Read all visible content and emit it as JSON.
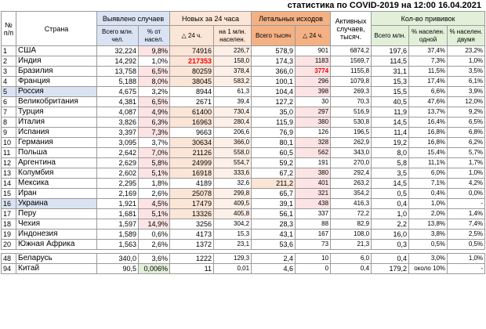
{
  "title": "статистика по COVID-2019 на 12:00 16.04.2021",
  "headers": {
    "num": "№ п/п",
    "country": "Страна",
    "cases": "Выявлено случаев",
    "cases_total": "Всего млн. чел.",
    "cases_pct": "% от насел.",
    "new24": "Новых за 24 часа",
    "new24_delta": "△ 24 ч.",
    "new24_per_mln": "на 1 млн. населен.",
    "deaths": "Летальных исходов",
    "deaths_total": "Всего тысяч",
    "deaths_delta": "△ 24 ч.",
    "active": "Активных случаев, тысяч.",
    "vaccines": "Кол-во прививок",
    "vac_total": "Всего млн.",
    "vac_one": "% населен. одной",
    "vac_two": "% населен. двумя"
  },
  "colors": {
    "header_blue": "#dae3f3",
    "header_orange": "#fbe5d6",
    "header_red": "#f4b183",
    "header_green": "#e2f0d9",
    "highlight_row": "#dae3f3"
  },
  "rows": [
    {
      "n": "1",
      "country": "США",
      "cases": "32,224",
      "pct": "9,8%",
      "new": "74916",
      "per_mln": "226,7",
      "deaths": "578,9",
      "d24": "901",
      "active": "6874,2",
      "vac": "197,6",
      "one": "37,4%",
      "two": "23,2%"
    },
    {
      "n": "2",
      "country": "Индия",
      "cases": "14,292",
      "pct": "1,0%",
      "new": "217353",
      "per_mln": "158,0",
      "deaths": "174,3",
      "d24": "1183",
      "active": "1569,7",
      "vac": "114,5",
      "one": "7,3%",
      "two": "1,0%"
    },
    {
      "n": "3",
      "country": "Бразилия",
      "cases": "13,758",
      "pct": "6,5%",
      "new": "80259",
      "per_mln": "378,4",
      "deaths": "366,0",
      "d24": "3774",
      "active": "1155,8",
      "vac": "31,1",
      "one": "11,5%",
      "two": "3,5%"
    },
    {
      "n": "4",
      "country": "Франция",
      "cases": "5,188",
      "pct": "8,0%",
      "new": "38045",
      "per_mln": "583,2",
      "deaths": "100,1",
      "d24": "296",
      "active": "1079,8",
      "vac": "15,3",
      "one": "17,4%",
      "two": "6,1%"
    },
    {
      "n": "5",
      "country": "Россия",
      "cases": "4,675",
      "pct": "3,2%",
      "new": "8944",
      "per_mln": "61,3",
      "deaths": "104,4",
      "d24": "398",
      "active": "269,3",
      "vac": "15,5",
      "one": "6,6%",
      "two": "3,9%"
    },
    {
      "n": "6",
      "country": "Великобритания",
      "cases": "4,381",
      "pct": "6,5%",
      "new": "2671",
      "per_mln": "39,4",
      "deaths": "127,2",
      "d24": "30",
      "active": "70,3",
      "vac": "40,5",
      "one": "47,6%",
      "two": "12,0%"
    },
    {
      "n": "7",
      "country": "Турция",
      "cases": "4,087",
      "pct": "4,9%",
      "new": "61400",
      "per_mln": "730,4",
      "deaths": "35,0",
      "d24": "297",
      "active": "516,9",
      "vac": "11,9",
      "one": "13,7%",
      "two": "9,2%"
    },
    {
      "n": "8",
      "country": "Италия",
      "cases": "3,826",
      "pct": "6,3%",
      "new": "16963",
      "per_mln": "280,4",
      "deaths": "115,9",
      "d24": "380",
      "active": "530,8",
      "vac": "14,5",
      "one": "16,4%",
      "two": "6,5%"
    },
    {
      "n": "9",
      "country": "Испания",
      "cases": "3,397",
      "pct": "7,3%",
      "new": "9663",
      "per_mln": "206,6",
      "deaths": "76,9",
      "d24": "126",
      "active": "196,5",
      "vac": "11,4",
      "one": "16,8%",
      "two": "6,8%"
    },
    {
      "n": "10",
      "country": "Германия",
      "cases": "3,095",
      "pct": "3,7%",
      "new": "30634",
      "per_mln": "366,0",
      "deaths": "80,1",
      "d24": "328",
      "active": "262,9",
      "vac": "19,2",
      "one": "16,8%",
      "two": "6,2%"
    },
    {
      "n": "11",
      "country": "Польша",
      "cases": "2,642",
      "pct": "7,0%",
      "new": "21126",
      "per_mln": "558,0",
      "deaths": "60,5",
      "d24": "562",
      "active": "343,0",
      "vac": "8,0",
      "one": "15,4%",
      "two": "5,7%"
    },
    {
      "n": "12",
      "country": "Аргентина",
      "cases": "2,629",
      "pct": "5,8%",
      "new": "24999",
      "per_mln": "554,7",
      "deaths": "59,2",
      "d24": "191",
      "active": "270,0",
      "vac": "5,8",
      "one": "11,1%",
      "two": "1,7%"
    },
    {
      "n": "13",
      "country": "Колумбия",
      "cases": "2,602",
      "pct": "5,1%",
      "new": "16918",
      "per_mln": "333,6",
      "deaths": "67,2",
      "d24": "380",
      "active": "292,4",
      "vac": "3,5",
      "one": "6,0%",
      "two": "1,0%"
    },
    {
      "n": "14",
      "country": "Мексика",
      "cases": "2,295",
      "pct": "1,8%",
      "new": "4189",
      "per_mln": "32,6",
      "deaths": "211,2",
      "d24": "401",
      "active": "263,2",
      "vac": "14,5",
      "one": "7,1%",
      "two": "4,2%"
    },
    {
      "n": "15",
      "country": "Иран",
      "cases": "2,169",
      "pct": "2,6%",
      "new": "25078",
      "per_mln": "299,8",
      "deaths": "65,7",
      "d24": "321",
      "active": "354,2",
      "vac": "0,5",
      "one": "0,4%",
      "two": "0,0%"
    },
    {
      "n": "16",
      "country": "Украина",
      "cases": "1,921",
      "pct": "4,5%",
      "new": "17479",
      "per_mln": "409,5",
      "deaths": "39,1",
      "d24": "438",
      "active": "416,3",
      "vac": "0,4",
      "one": "1,0%",
      "two": "-"
    },
    {
      "n": "17",
      "country": "Перу",
      "cases": "1,681",
      "pct": "5,1%",
      "new": "13326",
      "per_mln": "405,8",
      "deaths": "56,1",
      "d24": "337",
      "active": "72,2",
      "vac": "1,0",
      "one": "2,0%",
      "two": "1,4%"
    },
    {
      "n": "18",
      "country": "Чехия",
      "cases": "1,597",
      "pct": "14,9%",
      "new": "3256",
      "per_mln": "304,2",
      "deaths": "28,3",
      "d24": "88",
      "active": "82,9",
      "vac": "2,2",
      "one": "13,8%",
      "two": "7,4%"
    },
    {
      "n": "19",
      "country": "Индонезия",
      "cases": "1,589",
      "pct": "0,6%",
      "new": "4173",
      "per_mln": "15,3",
      "deaths": "43,1",
      "d24": "167",
      "active": "108,0",
      "vac": "16,0",
      "one": "3,8%",
      "two": "2,5%"
    },
    {
      "n": "20",
      "country": "Южная Африка",
      "cases": "1,563",
      "pct": "2,6%",
      "new": "1372",
      "per_mln": "23,1",
      "deaths": "53,6",
      "d24": "73",
      "active": "21,3",
      "vac": "0,3",
      "one": "0,5%",
      "two": "0,5%"
    },
    {
      "n": "48",
      "country": "Беларусь",
      "cases": "340,0",
      "pct": "3,6%",
      "new": "1222",
      "per_mln": "129,3",
      "deaths": "2,4",
      "d24": "10",
      "active": "6,0",
      "vac": "0,4",
      "one": "3,0%",
      "two": "1,0%"
    },
    {
      "n": "94",
      "country": "Китай",
      "cases": "90,5",
      "pct": "0,006%",
      "new": "11",
      "per_mln": "0,01",
      "deaths": "4,6",
      "d24": "0",
      "active": "0,4",
      "vac": "179,2",
      "one": "около 10%",
      "two": "-"
    }
  ]
}
